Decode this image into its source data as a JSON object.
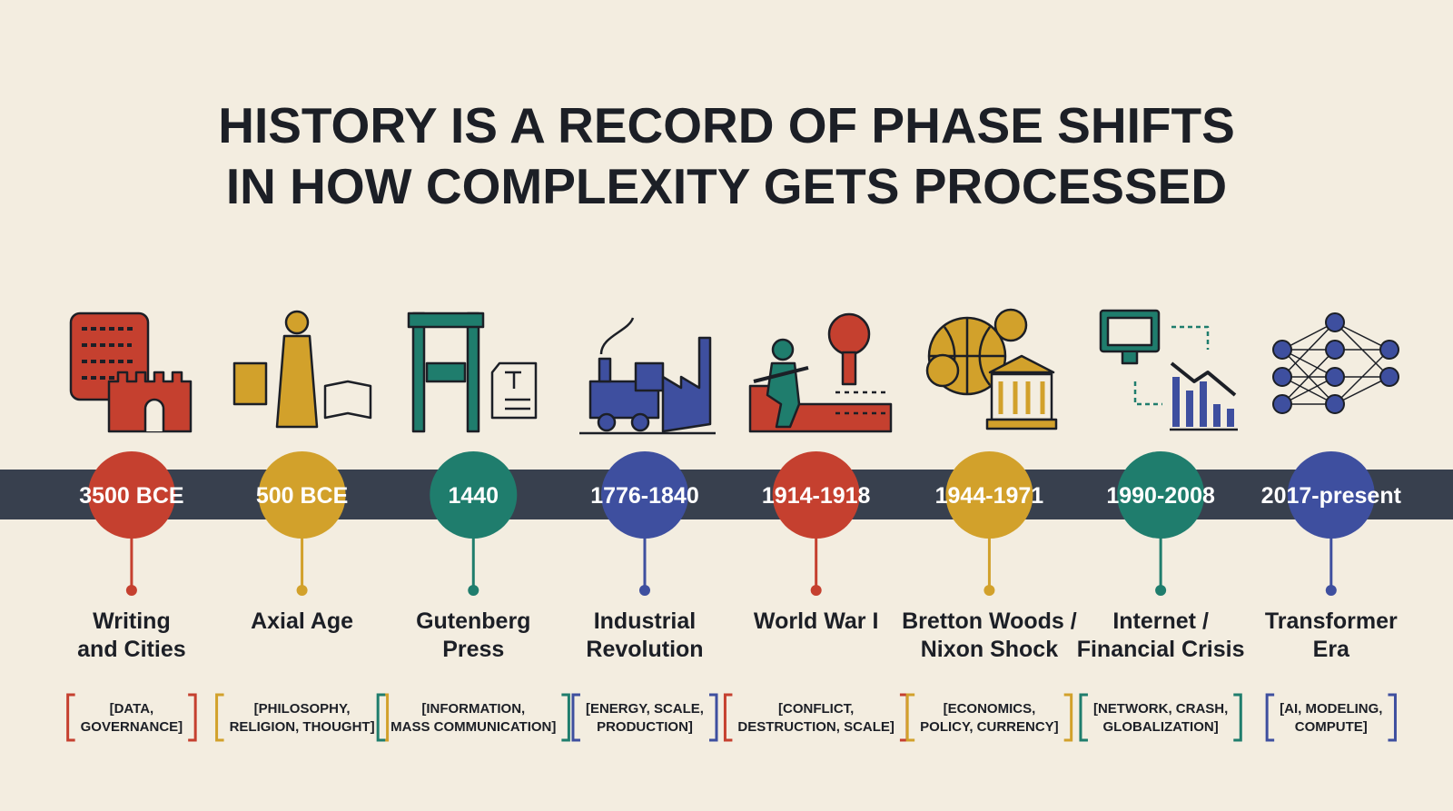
{
  "title": [
    "HISTORY IS A RECORD OF PHASE SHIFTS",
    "IN HOW COMPLEXITY GETS PROCESSED"
  ],
  "eras": [
    {
      "date": "3500 BCE",
      "name": [
        "Writing",
        "and Cities"
      ],
      "tags": [
        "[DATA,",
        "GOVERNANCE]"
      ],
      "color": "#c5402f"
    },
    {
      "date": "500 BCE",
      "name": [
        "Axial Age"
      ],
      "tags": [
        "[PHILOSOPHY,",
        "RELIGION, THOUGHT]"
      ],
      "color": "#d2a12b"
    },
    {
      "date": "1440",
      "name": [
        "Gutenberg",
        "Press"
      ],
      "tags": [
        "[INFORMATION,",
        "MASS COMMUNICATION]"
      ],
      "color": "#1f7d6d"
    },
    {
      "date": "1776-1840",
      "name": [
        "Industrial",
        "Revolution"
      ],
      "tags": [
        "[ENERGY, SCALE,",
        "PRODUCTION]"
      ],
      "color": "#3e4f9f"
    },
    {
      "date": "1914-1918",
      "name": [
        "World War I"
      ],
      "tags": [
        "[CONFLICT,",
        "DESTRUCTION, SCALE]"
      ],
      "color": "#c5402f"
    },
    {
      "date": "1944-1971",
      "name": [
        "Bretton Woods /",
        "Nixon Shock"
      ],
      "tags": [
        "[ECONOMICS,",
        "POLICY, CURRENCY]"
      ],
      "color": "#d2a12b"
    },
    {
      "date": "1990-2008",
      "name": [
        "Internet /",
        "Financial Crisis"
      ],
      "tags": [
        "[NETWORK, CRASH,",
        "GLOBALIZATION]"
      ],
      "color": "#1f7d6d"
    },
    {
      "date": "2017-present",
      "name": [
        "Transformer",
        "Era"
      ],
      "tags": [
        "[AI, MODELING,",
        "COMPUTE]"
      ],
      "color": "#3e4f9f"
    }
  ]
}
